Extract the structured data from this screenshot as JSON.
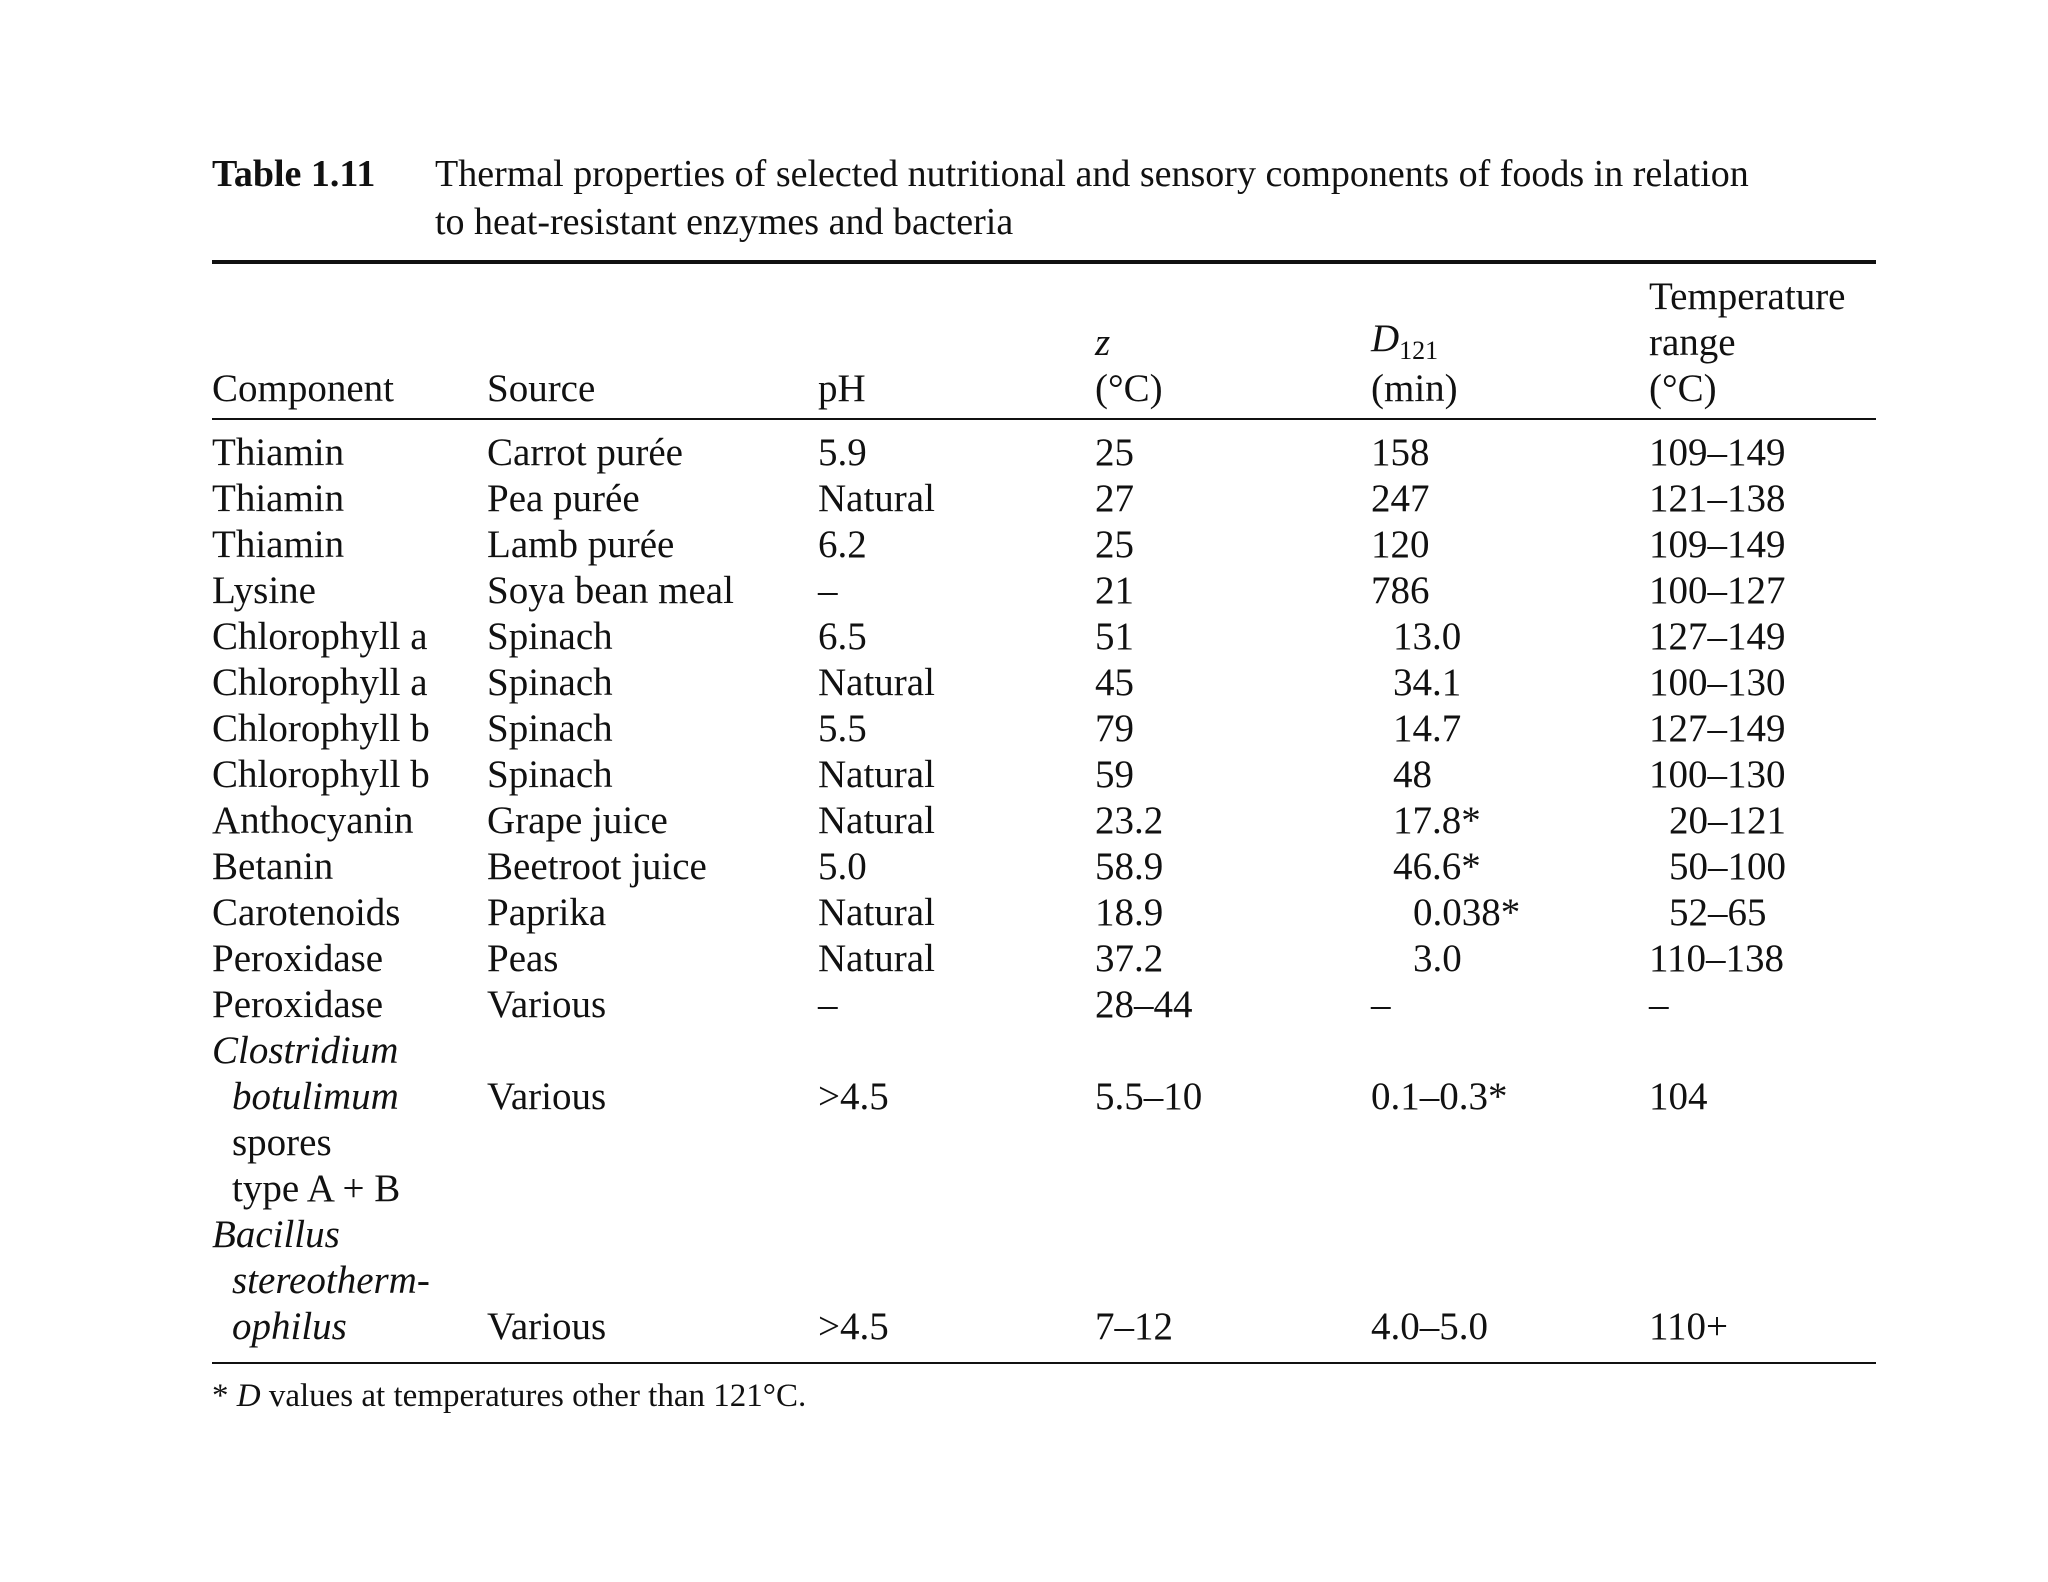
{
  "caption": {
    "label": "Table 1.11",
    "line1": "Thermal properties of selected nutritional and sensory components of foods in relation",
    "line2": "to heat-resistant enzymes and bacteria"
  },
  "headers": {
    "component": "Component",
    "source": "Source",
    "ph": "pH",
    "z_symbol": "z",
    "z_unit": "(°C)",
    "d_symbol": "D",
    "d_sub": "121",
    "d_unit": "(min)",
    "temp_line1": "Temperature",
    "temp_line2": "range",
    "temp_unit": "(°C)"
  },
  "rows": [
    {
      "component": "Thiamin",
      "source": "Carrot purée",
      "ph": "5.9",
      "z": "25",
      "d": "158",
      "temp": "109–149"
    },
    {
      "component": "Thiamin",
      "source": "Pea purée",
      "ph": "Natural",
      "z": "27",
      "d": "247",
      "temp": "121–138"
    },
    {
      "component": "Thiamin",
      "source": "Lamb purée",
      "ph": "6.2",
      "z": "25",
      "d": "120",
      "temp": "109–149"
    },
    {
      "component": "Lysine",
      "source": "Soya bean meal",
      "ph": "–",
      "z": "21",
      "d": "786",
      "temp": "100–127"
    },
    {
      "component": "Chlorophyll a",
      "source": "Spinach",
      "ph": "6.5",
      "z": "51",
      "d": "13.0",
      "temp": "127–149"
    },
    {
      "component": "Chlorophyll a",
      "source": "Spinach",
      "ph": "Natural",
      "z": "45",
      "d": "34.1",
      "temp": "100–130"
    },
    {
      "component": "Chlorophyll b",
      "source": "Spinach",
      "ph": "5.5",
      "z": "79",
      "d": "14.7",
      "temp": "127–149"
    },
    {
      "component": "Chlorophyll b",
      "source": "Spinach",
      "ph": "Natural",
      "z": "59",
      "d": "48",
      "temp": "100–130"
    },
    {
      "component": "Anthocyanin",
      "source": "Grape juice",
      "ph": "Natural",
      "z": "23.2",
      "d": "17.8*",
      "temp": "20–121"
    },
    {
      "component": "Betanin",
      "source": "Beetroot juice",
      "ph": "5.0",
      "z": "58.9",
      "d": "46.6*",
      "temp": "50–100"
    },
    {
      "component": "Carotenoids",
      "source": "Paprika",
      "ph": "Natural",
      "z": "18.9",
      "d": "0.038*",
      "temp": "52–65"
    },
    {
      "component": "Peroxidase",
      "source": "Peas",
      "ph": "Natural",
      "z": "37.2",
      "d": "3.0",
      "temp": "110–138"
    },
    {
      "component": "Peroxidase",
      "source": "Various",
      "ph": "–",
      "z": "28–44",
      "d": "–",
      "temp": "–"
    }
  ],
  "clostridium": {
    "name_line1": "Clostridium",
    "name_line2": "botulimum",
    "name_line3": "spores",
    "name_line4": "type A + B",
    "source": "Various",
    "ph": ">4.5",
    "z": "5.5–10",
    "d": "0.1–0.3*",
    "temp": "104"
  },
  "bacillus": {
    "name_line1": "Bacillus",
    "name_line2": "stereotherm-",
    "name_line3": "ophilus",
    "source": "Various",
    "ph": ">4.5",
    "z": "7–12",
    "d": "4.0–5.0",
    "temp": "110+"
  },
  "footnote": {
    "star": "* ",
    "d_symbol": "D",
    "text": " values at temperatures other than 121°C."
  }
}
